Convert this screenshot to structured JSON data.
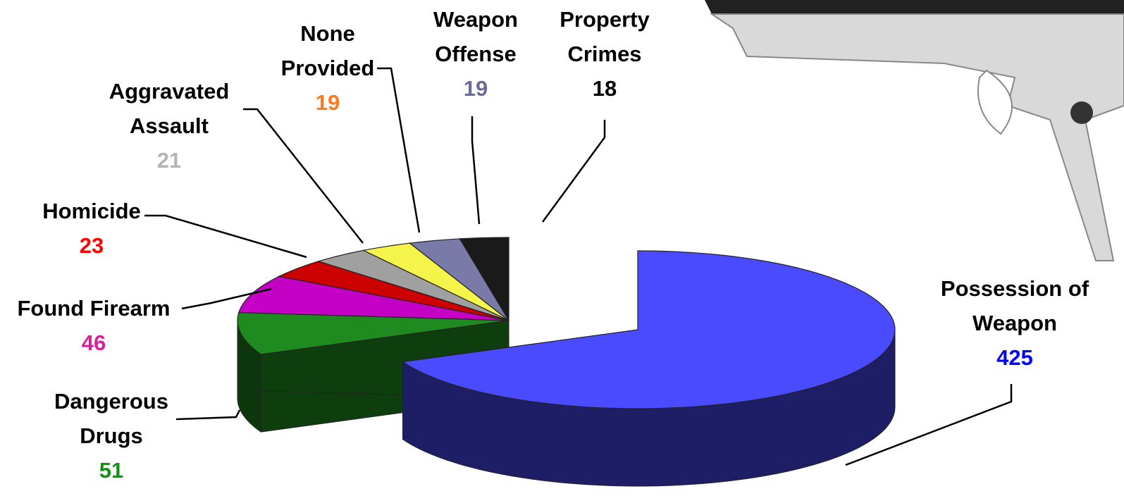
{
  "chart_data": {
    "type": "pie3d",
    "categories": [
      "Possession of Weapon",
      "Dangerous Drugs",
      "Found Firearm",
      "Homicide",
      "Aggravated Assault",
      "None Provided",
      "Weapon Offense",
      "Property Crimes"
    ],
    "values": [
      425,
      51,
      46,
      23,
      21,
      19,
      19,
      18
    ],
    "colors": [
      "#4a4aff",
      "#1f8a1f",
      "#c400c4",
      "#cc0000",
      "#a0a0a0",
      "#f4f44a",
      "#7a7aa8",
      "#1a1a1a"
    ],
    "label_colors": [
      "#0000ff",
      "#129112",
      "#d4249c",
      "#ff0000",
      "#b4b4b4",
      "#ff7a1a",
      "#6b6b9a",
      "#000000"
    ]
  }
}
